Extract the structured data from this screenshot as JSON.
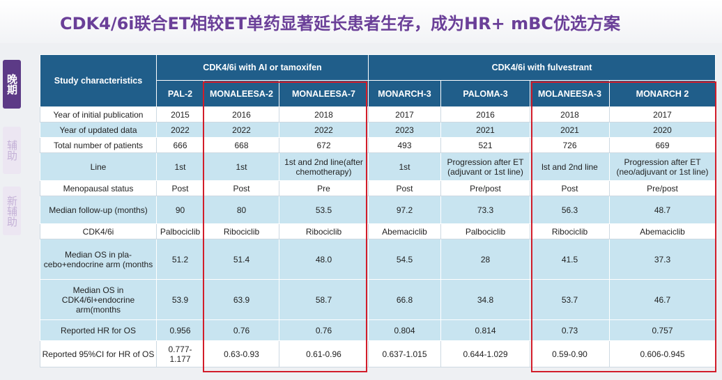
{
  "title": "CDK4/6i联合ET相较ET单药显著延长患者生存，成为HR+ mBC优选方案",
  "side_tabs": [
    "晚期",
    "辅助",
    "新辅助"
  ],
  "table": {
    "corner": "Study characteristics",
    "groups": [
      "CDK4/6i with AI or tamoxifen",
      "CDK4/6i with fulvestrant"
    ],
    "studies": [
      "PAL-2",
      "MONALEESA-2",
      "MONALEESA-7",
      "MONARCH-3",
      "PALOMA-3",
      "MOLANEESA-3",
      "MONARCH 2"
    ],
    "rows": [
      {
        "label": "Year of initial publication",
        "values": [
          "2015",
          "2016",
          "2018",
          "2017",
          "2016",
          "2018",
          "2017"
        ]
      },
      {
        "label": "Year of updated data",
        "values": [
          "2022",
          "2022",
          "2022",
          "2023",
          "2021",
          "2021",
          "2020"
        ]
      },
      {
        "label": "Total number of patients",
        "values": [
          "666",
          "668",
          "672",
          "493",
          "521",
          "726",
          "669"
        ]
      },
      {
        "label": "Line",
        "values": [
          "1st",
          "1st",
          "1st and 2nd line(after chemotherapy)",
          "1st",
          "Progression after ET (adjuvant or 1st line)",
          "lst and 2nd line",
          "Progression after ET (neo/adjuvant or 1st line)"
        ]
      },
      {
        "label": "Menopausal status",
        "values": [
          "Post",
          "Post",
          "Pre",
          "Post",
          "Pre/post",
          "Post",
          "Pre/post"
        ]
      },
      {
        "label": "Median follow-up (months)",
        "values": [
          "90",
          "80",
          "53.5",
          "97.2",
          "73.3",
          "56.3",
          "48.7"
        ]
      },
      {
        "label": "CDK4/6i",
        "values": [
          "Palbociclib",
          "Ribociclib",
          "Ribociclib",
          "Abemaciclib",
          "Palbociclib",
          "Ribociclib",
          "Abemaciclib"
        ]
      },
      {
        "label": "Median OS in pla-cebo+endocrine arm (months",
        "values": [
          "51.2",
          "51.4",
          "48.0",
          "54.5",
          "28",
          "41.5",
          "37.3"
        ]
      },
      {
        "label": "Median OS in CDK4/6l+endocrine arm(months",
        "values": [
          "53.9",
          "63.9",
          "58.7",
          "66.8",
          "34.8",
          "53.7",
          "46.7"
        ]
      },
      {
        "label": "Reported HR for OS",
        "values": [
          "0.956",
          "0.76",
          "0.76",
          "0.804",
          "0.814",
          "0.73",
          "0.757"
        ]
      },
      {
        "label": "Reported 95%CI for HR of OS",
        "values": [
          "0.777-1.177",
          "0.63-0.93",
          "0.61-0.96",
          "0.637-1.015",
          "0.644-1.029",
          "0.59-0.90",
          "0.606-0.945"
        ]
      }
    ]
  }
}
